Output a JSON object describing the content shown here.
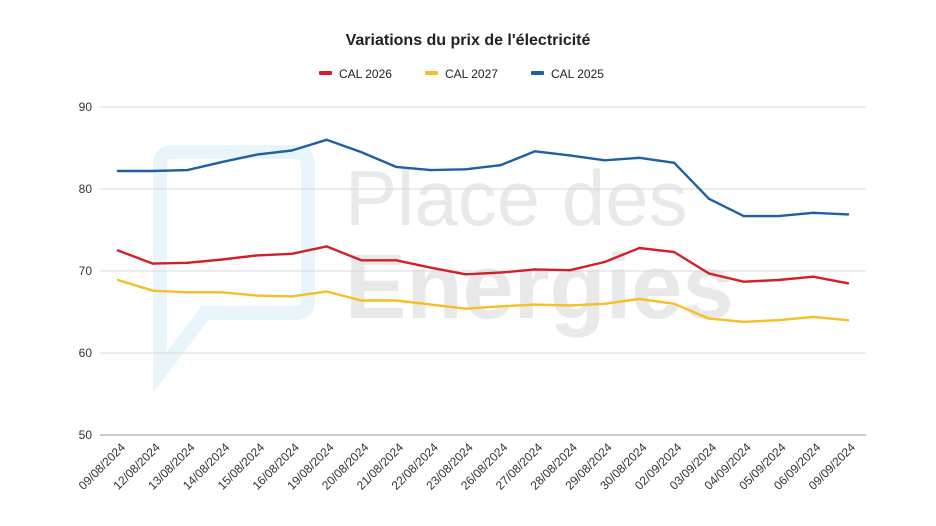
{
  "chart_data": {
    "type": "line",
    "title": "Variations du prix de l'électricité",
    "xlabel": "",
    "ylabel": "",
    "ylim": [
      50,
      90
    ],
    "yticks": [
      50,
      60,
      70,
      80,
      90
    ],
    "grid": true,
    "legend_position": "top",
    "categories": [
      "09/08/2024",
      "12/08/2024",
      "13/08/2024",
      "14/08/2024",
      "15/08/2024",
      "16/08/2024",
      "19/08/2024",
      "20/08/2024",
      "21/08/2024",
      "22/08/2024",
      "23/08/2024",
      "26/08/2024",
      "27/08/2024",
      "28/08/2024",
      "29/08/2024",
      "30/08/2024",
      "02/09/2024",
      "03/09/2024",
      "04/09/2024",
      "05/09/2024",
      "06/09/2024",
      "09/09/2024"
    ],
    "series": [
      {
        "name": "CAL 2026",
        "color": "#d0212a",
        "values": [
          72.5,
          70.9,
          71.0,
          71.4,
          71.9,
          72.1,
          73.0,
          71.3,
          71.3,
          70.4,
          69.6,
          69.8,
          70.2,
          70.1,
          71.1,
          72.8,
          72.3,
          69.7,
          68.7,
          68.9,
          69.3,
          68.5
        ]
      },
      {
        "name": "CAL 2027",
        "color": "#f6bf26",
        "values": [
          68.9,
          67.6,
          67.4,
          67.4,
          67.0,
          66.9,
          67.5,
          66.4,
          66.4,
          65.9,
          65.4,
          65.7,
          65.9,
          65.8,
          66.0,
          66.6,
          66.0,
          64.2,
          63.8,
          64.0,
          64.4,
          64.0
        ]
      },
      {
        "name": "CAL 2025",
        "color": "#1f5fa3",
        "values": [
          82.2,
          82.2,
          82.3,
          83.3,
          84.2,
          84.7,
          86.0,
          84.5,
          82.7,
          82.3,
          82.4,
          82.9,
          84.6,
          84.1,
          83.5,
          83.8,
          83.2,
          78.8,
          76.7,
          76.7,
          77.1,
          76.9
        ]
      }
    ]
  },
  "watermark": {
    "line1": "Place des",
    "line2": "Energies",
    "color": "#5cc3e6"
  }
}
